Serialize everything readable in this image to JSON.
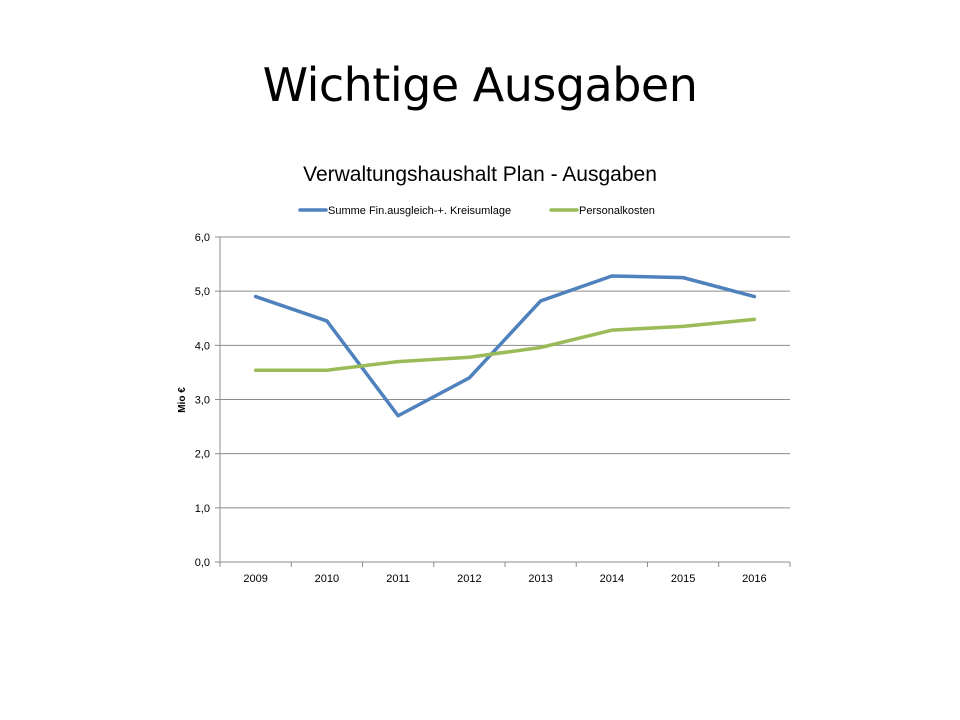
{
  "slide": {
    "title": "Wichtige Ausgaben"
  },
  "colors": {
    "series1": "#4F81BD",
    "series2": "#9BBB59",
    "grid": "#8C8C8C",
    "axis": "#8C8C8C"
  },
  "chart_data": {
    "type": "line",
    "title": "Verwaltungshaushalt Plan  -  Ausgaben",
    "xlabel": "",
    "ylabel": "Mio €",
    "categories": [
      "2009",
      "2010",
      "2011",
      "2012",
      "2013",
      "2014",
      "2015",
      "2016"
    ],
    "ylim": [
      0,
      6
    ],
    "yticks": [
      "0,0",
      "1,0",
      "2,0",
      "3,0",
      "4,0",
      "5,0",
      "6,0"
    ],
    "grid": true,
    "legend": "top",
    "series": [
      {
        "name": "Summe Fin.ausgleich-+. Kreisumlage",
        "color": "#4F81BD",
        "values": [
          4.9,
          4.45,
          2.7,
          3.4,
          4.82,
          5.28,
          5.25,
          4.9
        ]
      },
      {
        "name": "Personalkosten",
        "color": "#9BBB59",
        "values": [
          3.54,
          3.54,
          3.7,
          3.78,
          3.96,
          4.28,
          4.35,
          4.48
        ]
      }
    ]
  }
}
